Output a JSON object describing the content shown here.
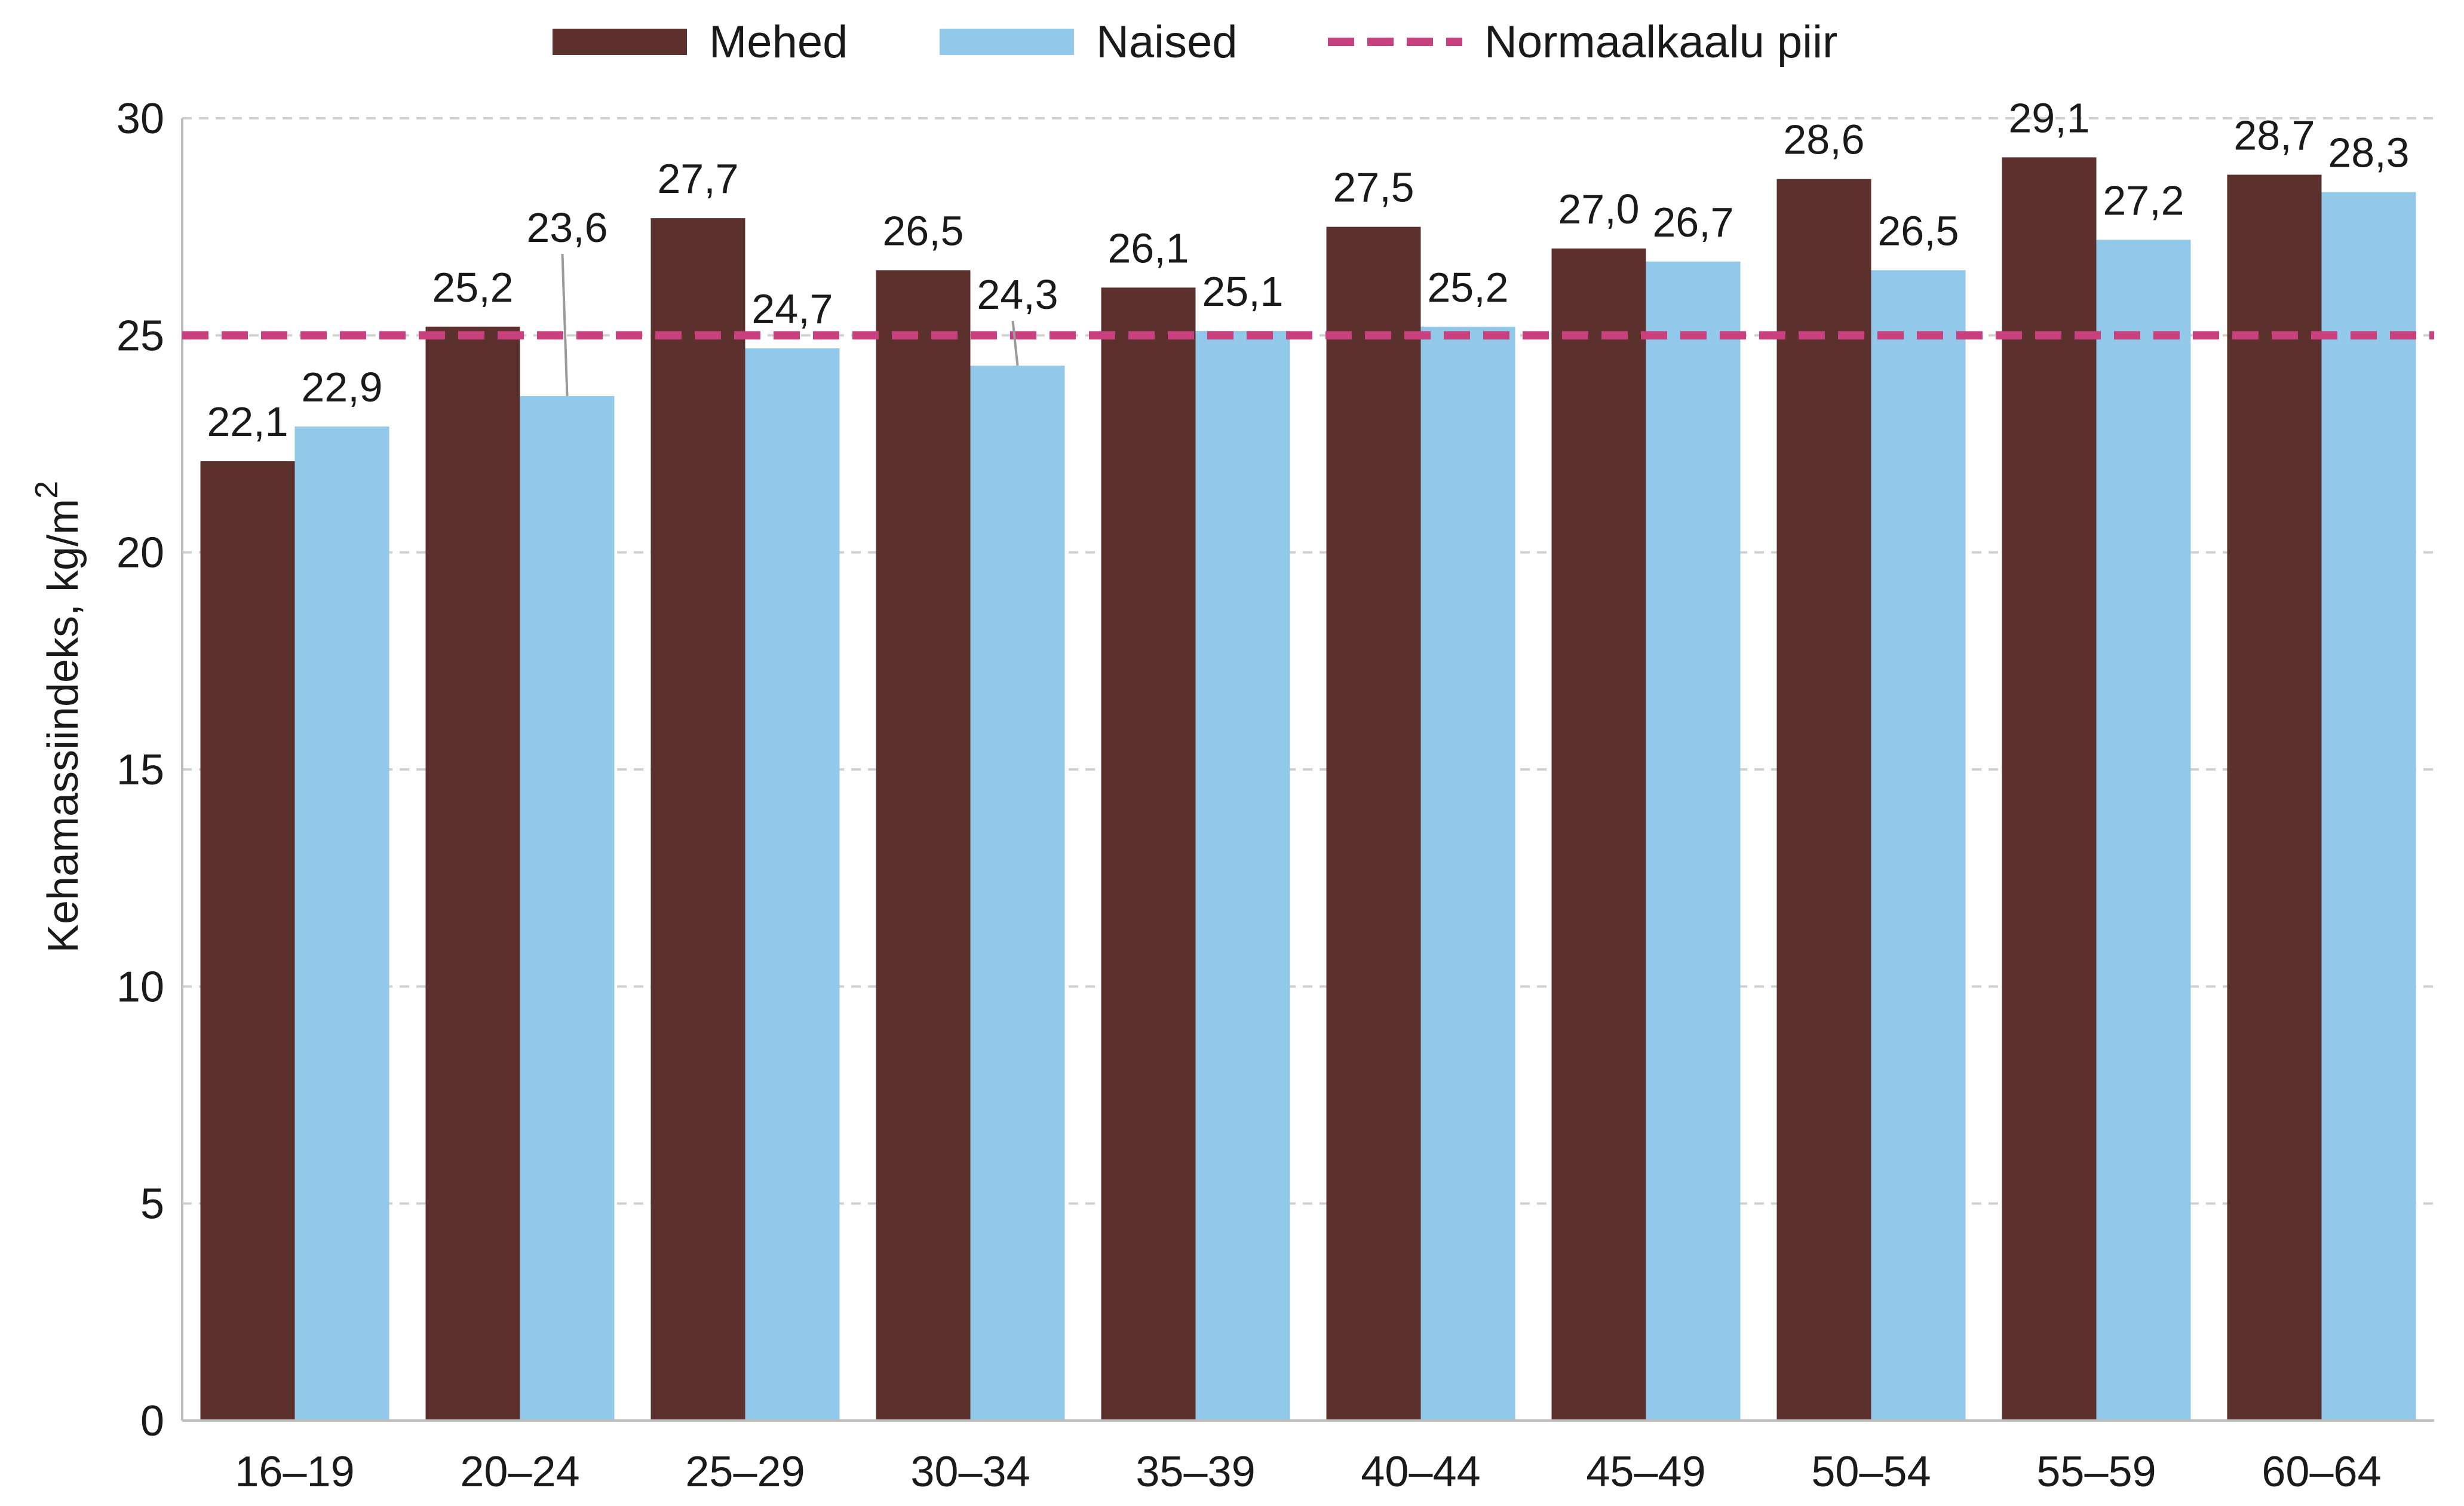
{
  "chart_data": {
    "type": "bar",
    "categories": [
      "16–19",
      "20–24",
      "25–29",
      "30–34",
      "35–39",
      "40–44",
      "45–49",
      "50–54",
      "55–59",
      "60–64"
    ],
    "series": [
      {
        "name": "Mehed",
        "color": "#5c302d",
        "values": [
          22.1,
          25.2,
          27.7,
          26.5,
          26.1,
          27.5,
          27.0,
          28.6,
          29.1,
          28.7
        ],
        "labels": [
          "22,1",
          "25,2",
          "27,7",
          "26,5",
          "26,1",
          "27,5",
          "27,0",
          "28,6",
          "29,1",
          "28,7"
        ]
      },
      {
        "name": "Naised",
        "color": "#92c8ea",
        "values": [
          22.9,
          23.6,
          24.7,
          24.3,
          25.1,
          25.2,
          26.7,
          26.5,
          27.2,
          28.3
        ],
        "labels": [
          "22,9",
          "23,6",
          "24,7",
          "24,3",
          "25,1",
          "25,2",
          "26,7",
          "26,5",
          "27,2",
          "28,3"
        ]
      }
    ],
    "reference_line": {
      "name": "Normaalkaalu piir",
      "value": 25,
      "color": "#c8407e",
      "style": "dashed"
    },
    "ylabel": "Kehamassiindeks, kg/m",
    "ylabel_superscript": "2",
    "ylim": [
      0,
      30
    ],
    "yticks": [
      0,
      5,
      10,
      15,
      20,
      25,
      30
    ],
    "grid": true,
    "legend_position": "top"
  }
}
